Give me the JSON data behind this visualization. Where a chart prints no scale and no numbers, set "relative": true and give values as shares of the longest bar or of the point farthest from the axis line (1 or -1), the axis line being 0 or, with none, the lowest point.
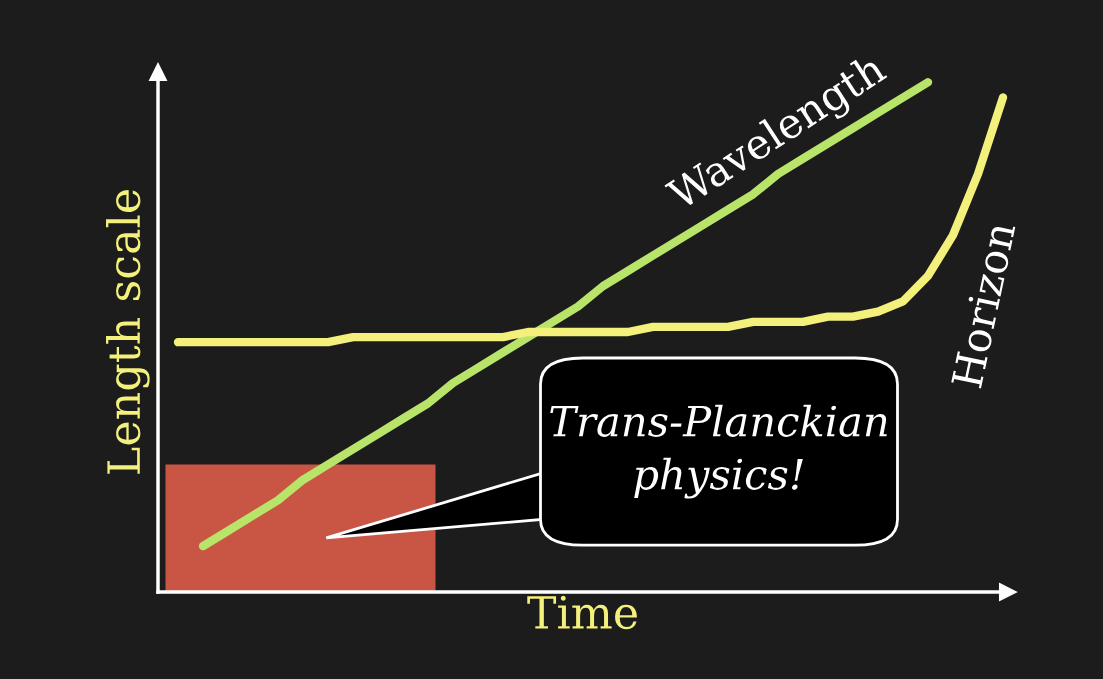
{
  "chart_data": {
    "type": "line",
    "relative": true,
    "xlabel": "Time",
    "ylabel": "Length scale",
    "categories": [
      null,
      null,
      null,
      null,
      null,
      null,
      null,
      null,
      null,
      null,
      null,
      null,
      null,
      null,
      null,
      null,
      null,
      null,
      null,
      null,
      null,
      null,
      null,
      null,
      null,
      null,
      null,
      null,
      null,
      null,
      null,
      null,
      null,
      null
    ],
    "series": [
      {
        "name": "Wavelength",
        "color": "#b8e46a",
        "values": [
          null,
          0.09,
          0.12,
          0.15,
          0.18,
          0.22,
          0.25,
          0.28,
          0.31,
          0.34,
          0.37,
          0.41,
          0.44,
          0.47,
          0.5,
          0.53,
          0.56,
          0.6,
          0.63,
          0.66,
          0.69,
          0.72,
          0.75,
          0.78,
          0.82,
          0.85,
          0.88,
          0.91,
          0.94,
          0.97,
          1.0,
          null,
          null,
          null
        ]
      },
      {
        "name": "Horizon",
        "color": "#f4f07c",
        "values": [
          0.49,
          0.49,
          0.49,
          0.49,
          0.49,
          0.49,
          0.49,
          0.5,
          0.5,
          0.5,
          0.5,
          0.5,
          0.5,
          0.5,
          0.51,
          0.51,
          0.51,
          0.51,
          0.51,
          0.52,
          0.52,
          0.52,
          0.52,
          0.53,
          0.53,
          0.53,
          0.54,
          0.54,
          0.55,
          0.57,
          0.62,
          0.7,
          0.82,
          0.97
        ]
      }
    ],
    "annotations": [
      "Trans-Planckian\nphysics!"
    ],
    "tick_labels": false
  }
}
